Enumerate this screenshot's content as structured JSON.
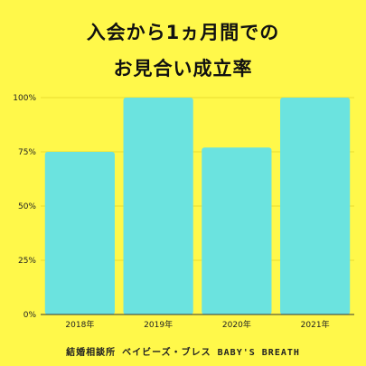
{
  "title_lines": [
    "入会から1ヵ月間での",
    "お見合い成立率"
  ],
  "footer": "結婚相談所 ベイビーズ・ブレス BABY'S BREATH",
  "colors": {
    "background": "#FFF84A",
    "bar": "#6BE3DF",
    "axis": "#333333",
    "grid": "#E8DD30"
  },
  "chart_data": {
    "type": "bar",
    "categories": [
      "2018年",
      "2019年",
      "2020年",
      "2021年"
    ],
    "values": [
      75,
      100,
      77,
      100
    ],
    "yticks": [
      "0%",
      "25%",
      "50%",
      "75%",
      "100%"
    ],
    "ylim": [
      0,
      100
    ],
    "title": "入会から1ヵ月間でのお見合い成立率",
    "xlabel": "",
    "ylabel": "",
    "grid": true
  }
}
